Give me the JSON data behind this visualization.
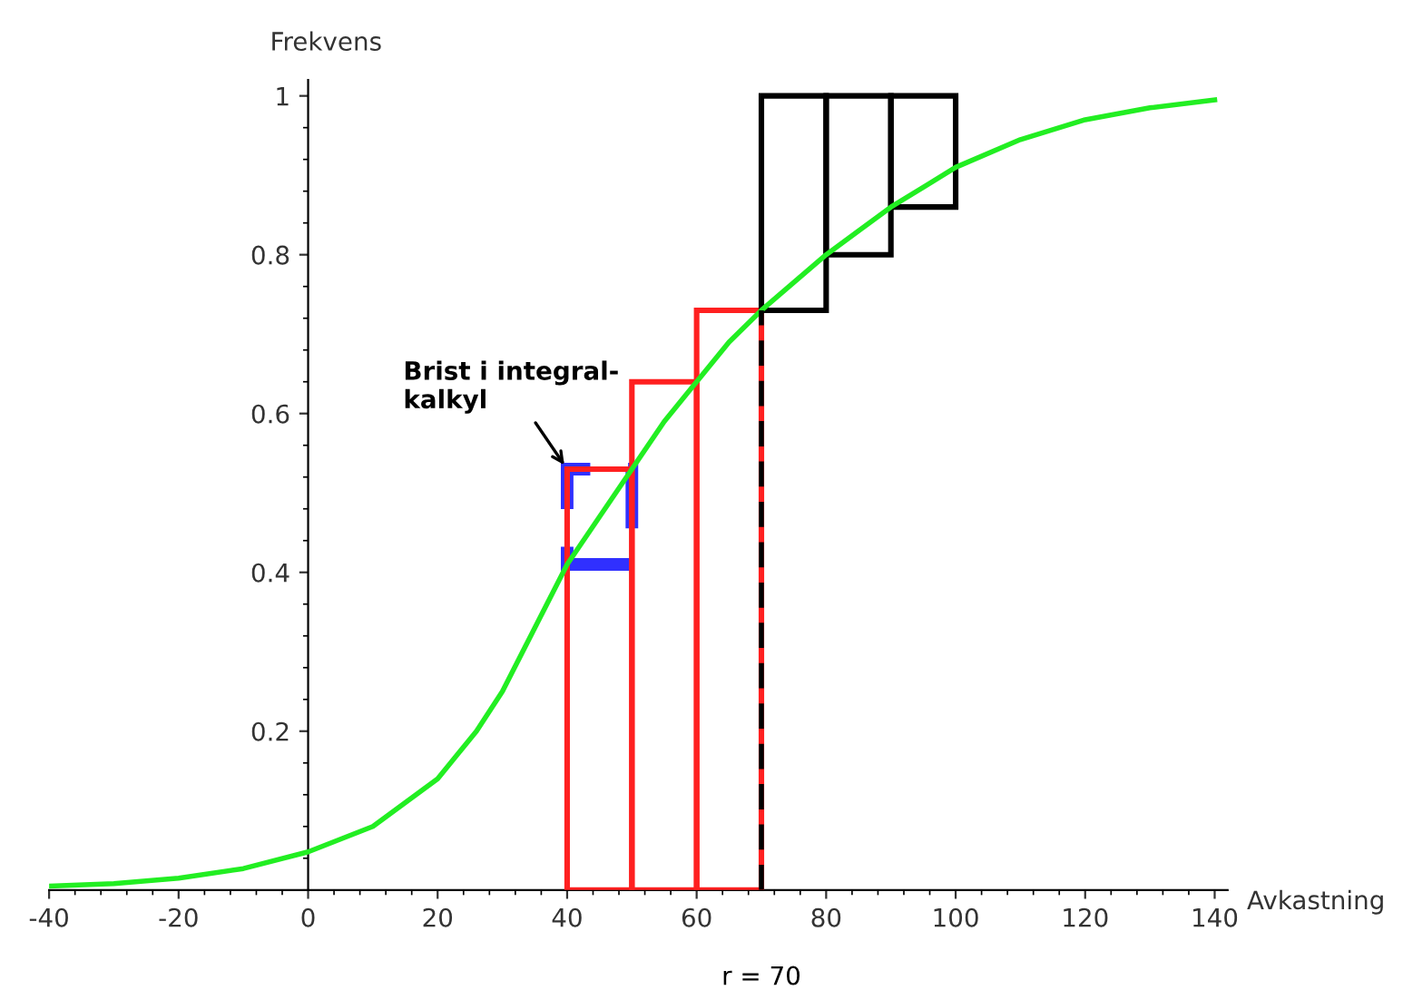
{
  "chart_data": {
    "type": "bar",
    "xlabel": "Avkastning",
    "ylabel": "Frekvens",
    "xlim": [
      -40,
      142
    ],
    "ylim": [
      0,
      1.02
    ],
    "xticks": [
      -40,
      -20,
      0,
      20,
      40,
      60,
      80,
      100,
      120,
      140
    ],
    "yticks": [
      0.2,
      0.4,
      0.6,
      0.8,
      1
    ],
    "grid": false,
    "legend": false,
    "series": [
      {
        "color": "#ff2020",
        "x": [
          45,
          55,
          65
        ],
        "base": [
          0,
          0,
          0
        ],
        "values": [
          0.53,
          0.64,
          0.73
        ]
      },
      {
        "color": "#000000",
        "x": [
          75,
          85,
          95
        ],
        "base": [
          0.73,
          0.8,
          0.86
        ],
        "values": [
          0.27,
          0.2,
          0.14
        ]
      },
      {
        "color": "#3030ff",
        "line_style": "dashed",
        "x": [
          45
        ],
        "base": [
          0.41
        ],
        "values": [
          0.12
        ]
      },
      {
        "type": "line",
        "color": "#22ee22",
        "x": [
          -40,
          -30,
          -20,
          -10,
          0,
          10,
          20,
          26,
          30,
          35,
          40,
          45,
          50,
          55,
          60,
          65,
          70,
          80,
          90,
          100,
          110,
          120,
          130,
          140
        ],
        "values": [
          0.005,
          0.008,
          0.015,
          0.027,
          0.048,
          0.08,
          0.14,
          0.2,
          0.25,
          0.33,
          0.41,
          0.47,
          0.53,
          0.59,
          0.64,
          0.69,
          0.73,
          0.8,
          0.86,
          0.91,
          0.945,
          0.97,
          0.985,
          0.995
        ]
      }
    ],
    "ref_lines": [
      {
        "axis": "x",
        "value": 70,
        "label": "r = 70",
        "color": "#000000",
        "line_style": "dashed"
      }
    ],
    "annotations": [
      {
        "text": "Brist i integral-\nkalkyl",
        "x": 40,
        "y": 0.53
      }
    ]
  }
}
